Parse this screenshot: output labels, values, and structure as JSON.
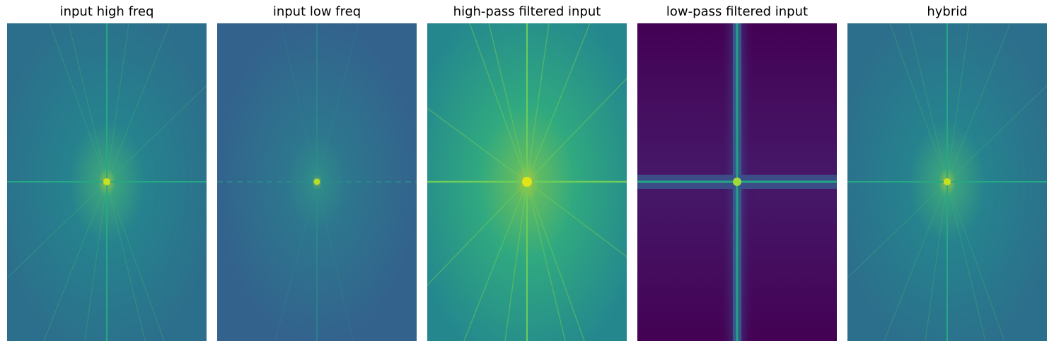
{
  "figure": {
    "panels": [
      {
        "title": "input high freq",
        "icon": "fft-magnitude-spectrum-image",
        "colormap": "viridis",
        "background_color": "#2c6f8c",
        "center_color": "#c9e020",
        "axis_line_color": "#26a883",
        "streak_color": "#3fb37a"
      },
      {
        "title": "input low freq",
        "icon": "fft-magnitude-spectrum-image",
        "colormap": "viridis",
        "background_color": "#33638d",
        "center_color": "#b5de2b",
        "axis_line_color": "#2a8f8a",
        "streak_color": "#2e9b88"
      },
      {
        "title": "high-pass filtered input",
        "icon": "fft-magnitude-spectrum-image",
        "colormap": "viridis",
        "background_color": "#24878e",
        "center_color": "#e2e418",
        "axis_line_color": "#6ccd5a",
        "streak_color": "#7ad151"
      },
      {
        "title": "low-pass filtered input",
        "icon": "fft-magnitude-spectrum-image",
        "colormap": "viridis",
        "background_color": "#440154",
        "center_color": "#a0da39",
        "axis_line_color": "#22a884",
        "streak_color": "#3e4a89"
      },
      {
        "title": "hybrid",
        "icon": "fft-magnitude-spectrum-image",
        "colormap": "viridis",
        "background_color": "#2c6f8c",
        "center_color": "#c9e020",
        "axis_line_color": "#26a883",
        "streak_color": "#3fb37a"
      }
    ]
  }
}
